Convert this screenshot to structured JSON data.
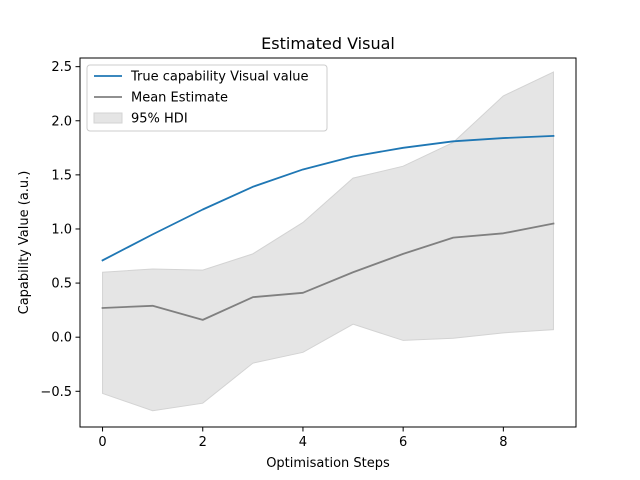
{
  "chart_data": {
    "type": "line",
    "title": "Estimated Visual",
    "xlabel": "Optimisation Steps",
    "ylabel": "Capability Value (a.u.)",
    "xlim": [
      -0.45,
      9.45
    ],
    "ylim": [
      -0.83,
      2.58
    ],
    "xticks": [
      0,
      2,
      4,
      6,
      8
    ],
    "yticks": [
      -0.5,
      0.0,
      0.5,
      1.0,
      1.5,
      2.0,
      2.5
    ],
    "xtick_labels": [
      "0",
      "2",
      "4",
      "6",
      "8"
    ],
    "ytick_labels": [
      "−0.5",
      "0.0",
      "0.5",
      "1.0",
      "1.5",
      "2.0",
      "2.5"
    ],
    "grid": false,
    "legend_position": "upper left",
    "x": [
      0,
      1,
      2,
      3,
      4,
      5,
      6,
      7,
      8,
      9
    ],
    "series": [
      {
        "name": "True capability Visual value",
        "kind": "line",
        "color": "#1f77b4",
        "values": [
          0.71,
          0.95,
          1.18,
          1.39,
          1.55,
          1.67,
          1.75,
          1.81,
          1.84,
          1.86
        ]
      },
      {
        "name": "Mean Estimate",
        "kind": "line",
        "color": "#808080",
        "values": [
          0.27,
          0.29,
          0.16,
          0.37,
          0.41,
          0.6,
          0.77,
          0.92,
          0.96,
          1.05
        ]
      },
      {
        "name": "95% HDI",
        "kind": "band",
        "color": "#d3d3d3",
        "lower": [
          -0.52,
          -0.68,
          -0.61,
          -0.24,
          -0.14,
          0.12,
          -0.03,
          -0.01,
          0.04,
          0.07
        ],
        "upper": [
          0.6,
          0.63,
          0.62,
          0.77,
          1.06,
          1.47,
          1.58,
          1.8,
          2.23,
          2.45
        ]
      }
    ]
  }
}
